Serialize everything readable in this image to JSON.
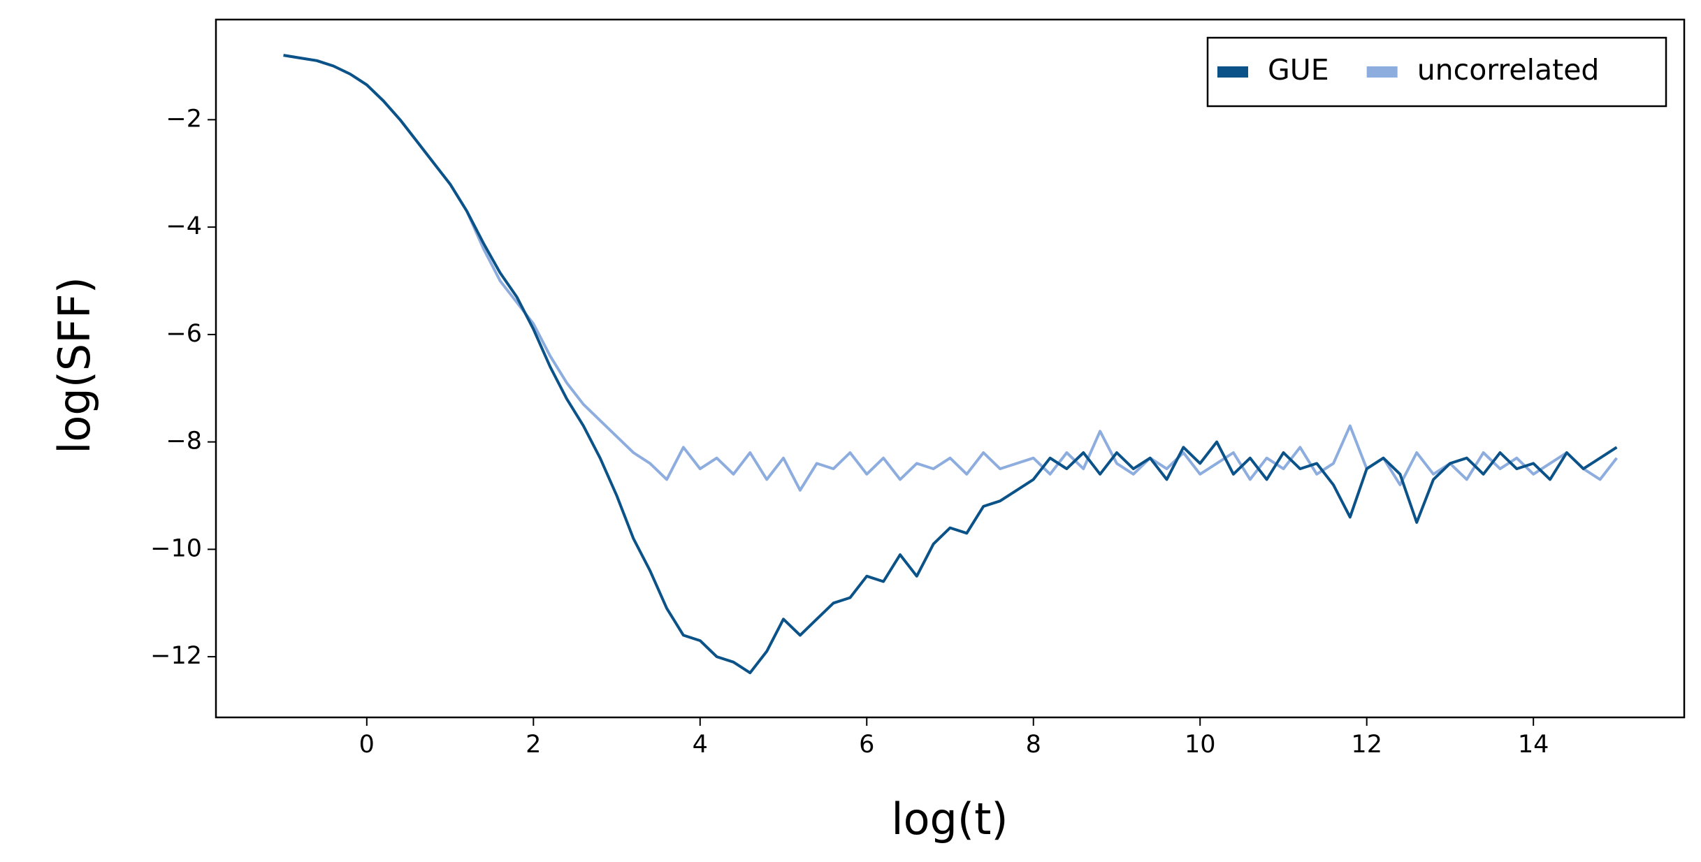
{
  "chart_data": {
    "type": "line",
    "xlabel": "log(t)",
    "ylabel": "log(SFF)",
    "x": [
      -1,
      -0.8,
      -0.6,
      -0.4,
      -0.2,
      0,
      0.2,
      0.4,
      0.6,
      0.8,
      1,
      1.2,
      1.4,
      1.6,
      1.8,
      2,
      2.2,
      2.4,
      2.6,
      2.8,
      3,
      3.2,
      3.4,
      3.6,
      3.8,
      4,
      4.2,
      4.4,
      4.6,
      4.8,
      5,
      5.2,
      5.4,
      5.6,
      5.8,
      6,
      6.2,
      6.4,
      6.6,
      6.8,
      7,
      7.2,
      7.4,
      7.6,
      7.8,
      8,
      8.2,
      8.4,
      8.6,
      8.8,
      9,
      9.2,
      9.4,
      9.6,
      9.8,
      10,
      10.2,
      10.4,
      10.6,
      10.8,
      11,
      11.2,
      11.4,
      11.6,
      11.8,
      12,
      12.2,
      12.4,
      12.6,
      12.8,
      13,
      13.2,
      13.4,
      13.6,
      13.8,
      14,
      14.2,
      14.4,
      14.6,
      14.8,
      15
    ],
    "series": [
      {
        "name": "uncorrelated",
        "color": "#8eaddf",
        "values": [
          -0.8,
          -0.85,
          -0.9,
          -1.0,
          -1.15,
          -1.35,
          -1.65,
          -2.0,
          -2.4,
          -2.8,
          -3.2,
          -3.7,
          -4.4,
          -5.0,
          -5.4,
          -5.8,
          -6.4,
          -6.9,
          -7.3,
          -7.6,
          -7.9,
          -8.2,
          -8.4,
          -8.7,
          -8.1,
          -8.5,
          -8.3,
          -8.6,
          -8.2,
          -8.7,
          -8.3,
          -8.9,
          -8.4,
          -8.5,
          -8.2,
          -8.6,
          -8.3,
          -8.7,
          -8.4,
          -8.5,
          -8.3,
          -8.6,
          -8.2,
          -8.5,
          -8.4,
          -8.3,
          -8.6,
          -8.2,
          -8.5,
          -7.8,
          -8.4,
          -8.6,
          -8.3,
          -8.5,
          -8.2,
          -8.6,
          -8.4,
          -8.2,
          -8.7,
          -8.3,
          -8.5,
          -8.1,
          -8.6,
          -8.4,
          -7.7,
          -8.5,
          -8.3,
          -8.8,
          -8.2,
          -8.6,
          -8.4,
          -8.7,
          -8.2,
          -8.5,
          -8.3,
          -8.6,
          -8.4,
          -8.2,
          -8.5,
          -8.7,
          -8.3
        ]
      },
      {
        "name": "GUE",
        "color": "#0a5288",
        "values": [
          -0.8,
          -0.85,
          -0.9,
          -1.0,
          -1.15,
          -1.35,
          -1.65,
          -2.0,
          -2.4,
          -2.8,
          -3.2,
          -3.7,
          -4.3,
          -4.85,
          -5.3,
          -5.9,
          -6.6,
          -7.2,
          -7.7,
          -8.3,
          -9.0,
          -9.8,
          -10.4,
          -11.1,
          -11.6,
          -11.7,
          -12.0,
          -12.1,
          -12.3,
          -11.9,
          -11.3,
          -11.6,
          -11.3,
          -11.0,
          -10.9,
          -10.5,
          -10.6,
          -10.1,
          -10.5,
          -9.9,
          -9.6,
          -9.7,
          -9.2,
          -9.1,
          -8.9,
          -8.7,
          -8.3,
          -8.5,
          -8.2,
          -8.6,
          -8.2,
          -8.5,
          -8.3,
          -8.7,
          -8.1,
          -8.4,
          -8.0,
          -8.6,
          -8.3,
          -8.7,
          -8.2,
          -8.5,
          -8.4,
          -8.8,
          -9.4,
          -8.5,
          -8.3,
          -8.6,
          -9.5,
          -8.7,
          -8.4,
          -8.3,
          -8.6,
          -8.2,
          -8.5,
          -8.4,
          -8.7,
          -8.2,
          -8.5,
          -8.3,
          -8.1
        ]
      }
    ],
    "legend_order": [
      "GUE",
      "uncorrelated"
    ],
    "legend": "upper right",
    "xlim": [
      -1.81,
      15.81
    ],
    "xticks": [
      0,
      2,
      4,
      6,
      8,
      10,
      12,
      14
    ],
    "ylim": [
      -13.13,
      -0.135
    ],
    "yticks": [
      {
        "value": -2,
        "label": "−2"
      },
      {
        "value": -4,
        "label": "−4"
      },
      {
        "value": -6,
        "label": "−6"
      },
      {
        "value": -8,
        "label": "−8"
      },
      {
        "value": -10,
        "label": "−10"
      },
      {
        "value": -12,
        "label": "−12"
      }
    ]
  }
}
